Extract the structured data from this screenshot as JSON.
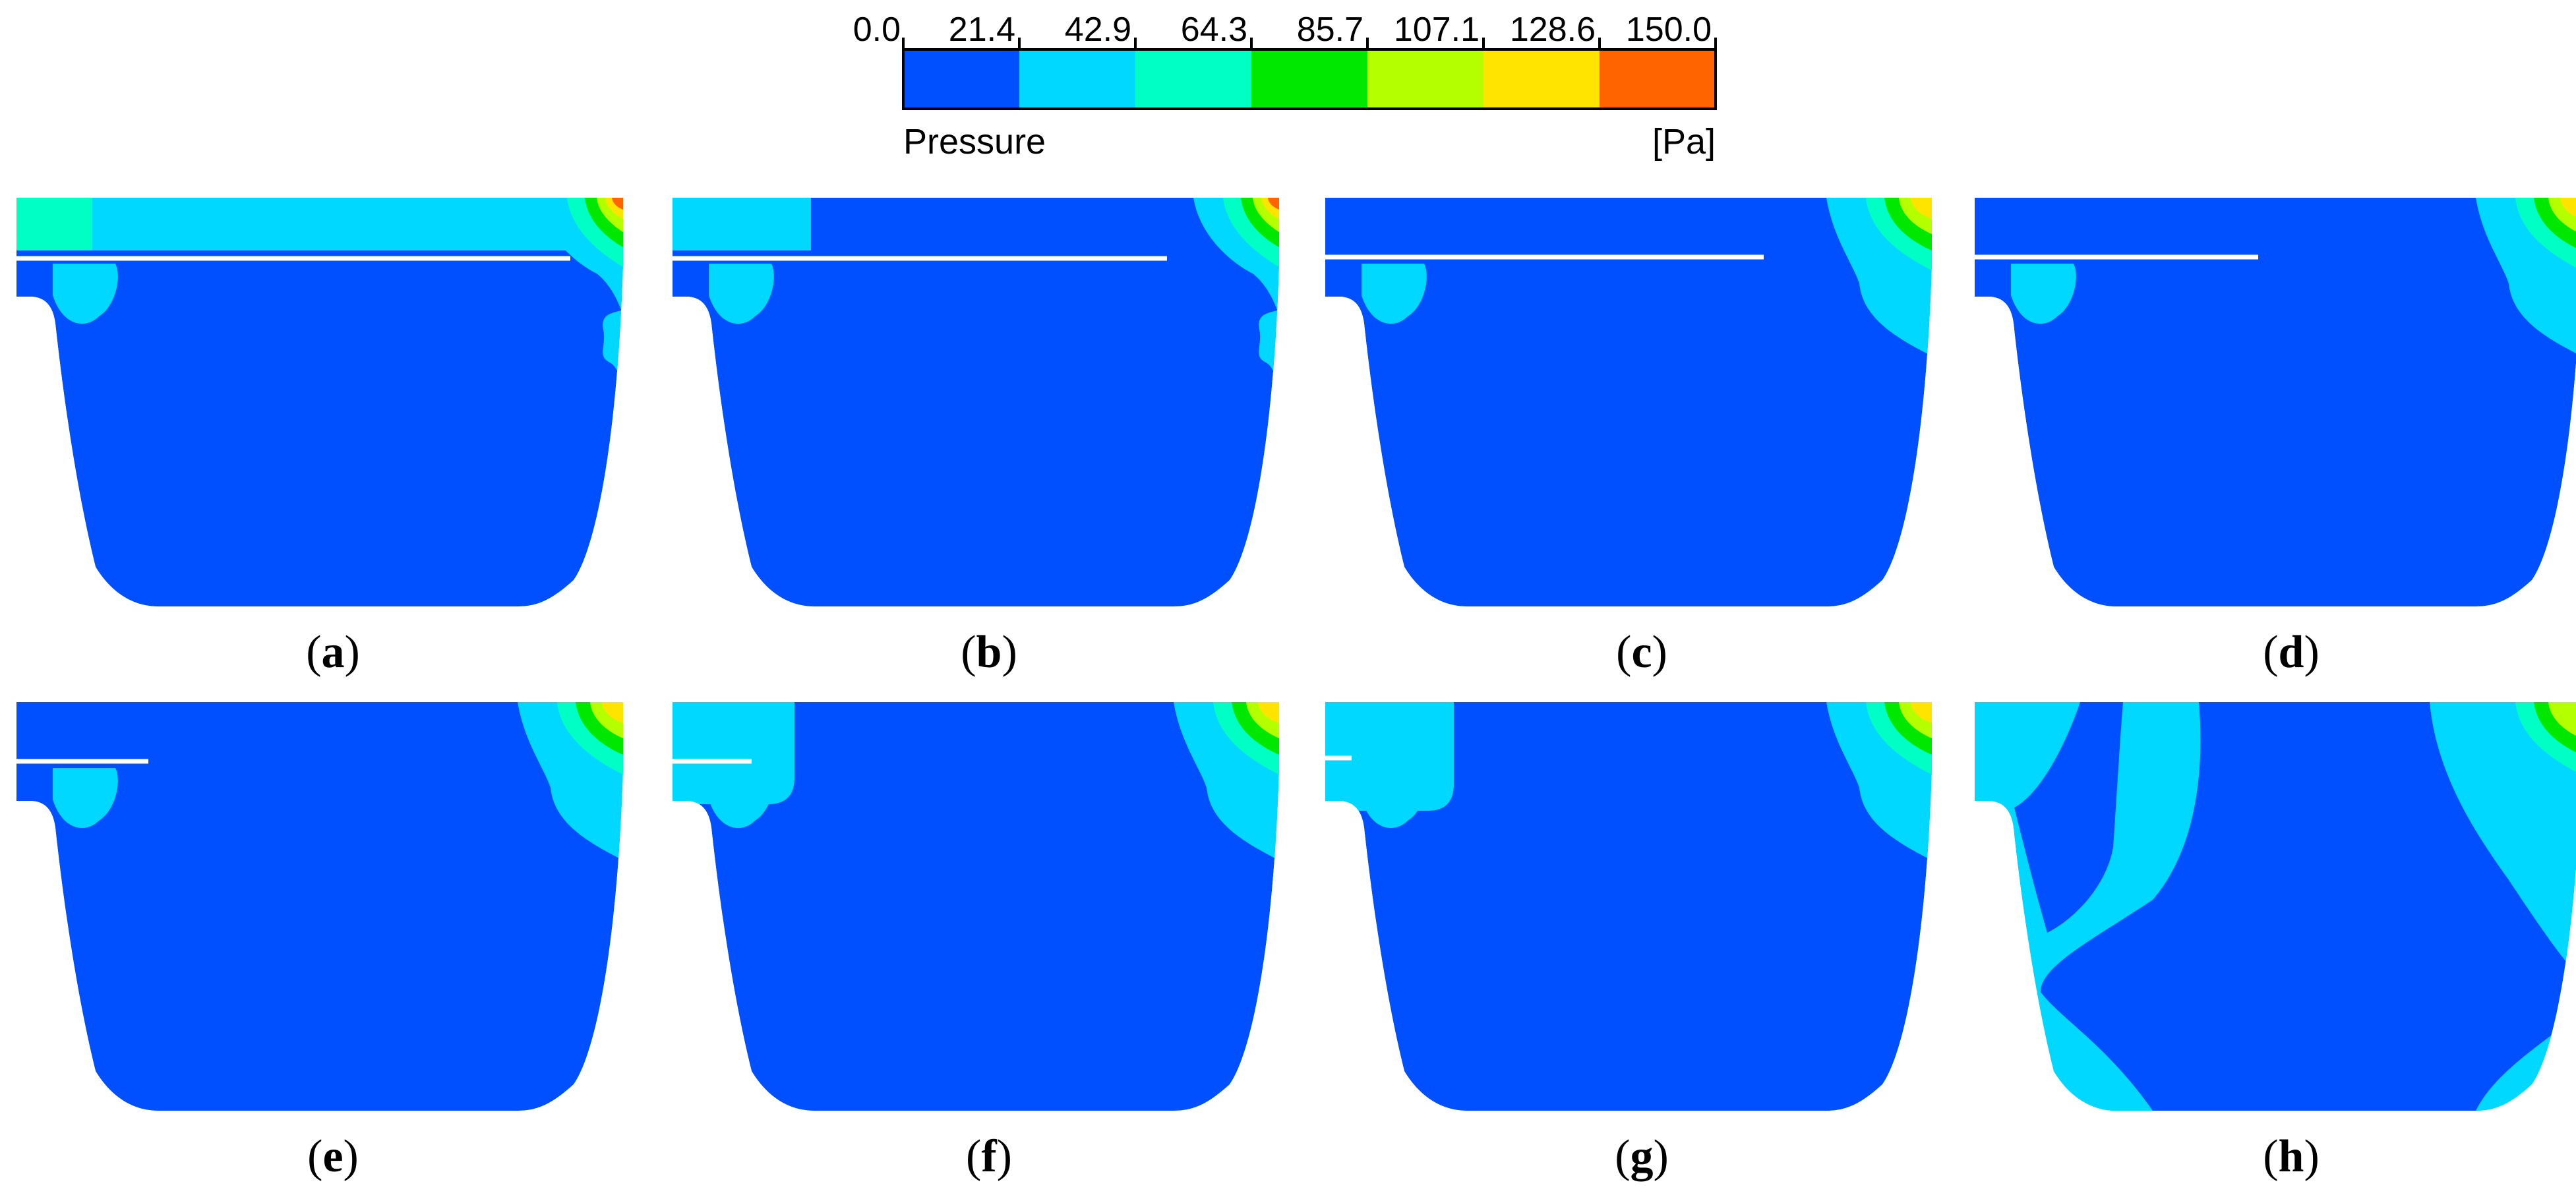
{
  "legend": {
    "title": "Pressure",
    "unit": "[Pa]",
    "ticks": [
      "0.0",
      "21.4",
      "42.9",
      "64.3",
      "85.7",
      "107.1",
      "128.6",
      "150.0"
    ],
    "colors": [
      "#0050ff",
      "#00d8ff",
      "#00ffc4",
      "#00e800",
      "#b4ff00",
      "#ffe400",
      "#ff6400"
    ]
  },
  "panels": [
    {
      "id": "a",
      "open": "(",
      "letter": "a",
      "close": ")"
    },
    {
      "id": "b",
      "open": "(",
      "letter": "b",
      "close": ")"
    },
    {
      "id": "c",
      "open": "(",
      "letter": "c",
      "close": ")"
    },
    {
      "id": "d",
      "open": "(",
      "letter": "d",
      "close": ")"
    },
    {
      "id": "e",
      "open": "(",
      "letter": "e",
      "close": ")"
    },
    {
      "id": "f",
      "open": "(",
      "letter": "f",
      "close": ")"
    },
    {
      "id": "g",
      "open": "(",
      "letter": "g",
      "close": ")"
    },
    {
      "id": "h",
      "open": "(",
      "letter": "h",
      "close": ")"
    }
  ]
}
